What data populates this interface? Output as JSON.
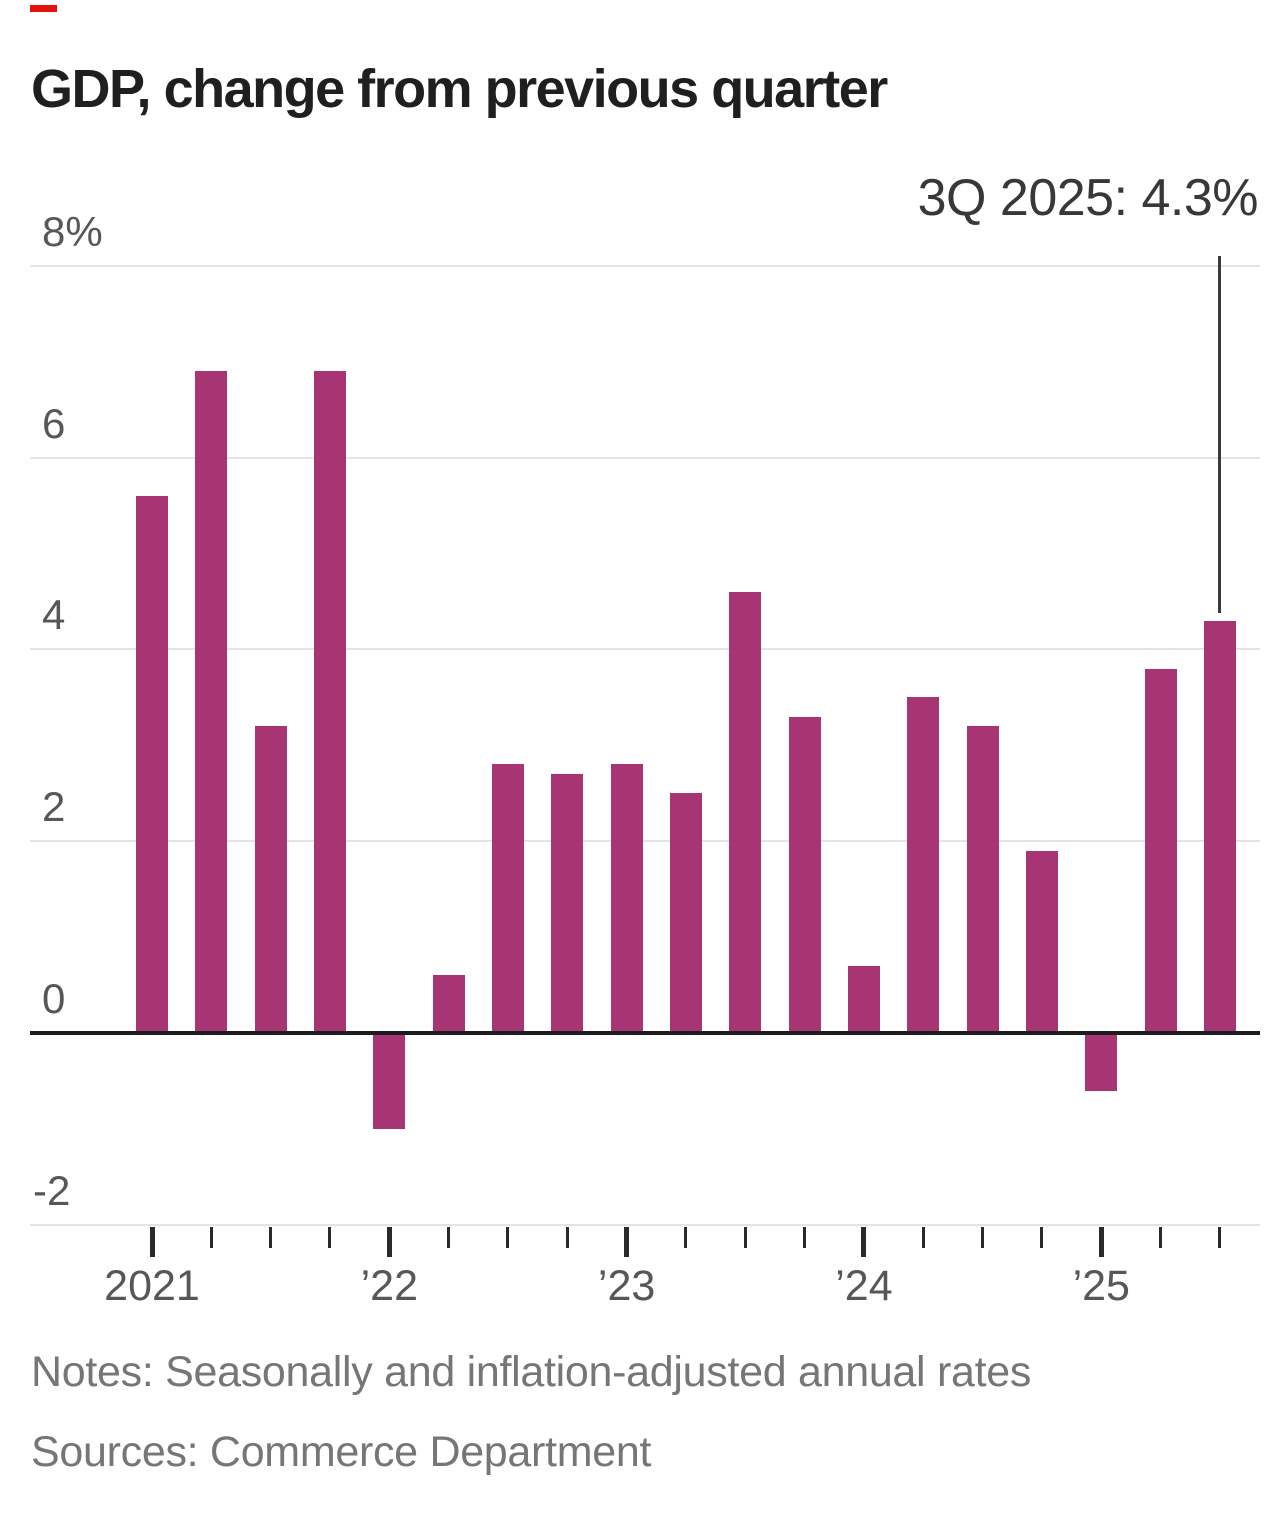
{
  "brand": {
    "accent_color": "#e3120b"
  },
  "header": {
    "title": "GDP, change from previous quarter"
  },
  "annotation": {
    "label": "3Q 2025: 4.3%"
  },
  "footer": {
    "notes": "Notes: Seasonally and inflation-adjusted annual rates",
    "sources": "Sources: Commerce Department"
  },
  "chart_data": {
    "type": "bar",
    "title": "GDP, change from previous quarter",
    "categories": [
      "1Q 2021",
      "2Q 2021",
      "3Q 2021",
      "4Q 2021",
      "1Q 2022",
      "2Q 2022",
      "3Q 2022",
      "4Q 2022",
      "1Q 2023",
      "2Q 2023",
      "3Q 2023",
      "4Q 2023",
      "1Q 2024",
      "2Q 2024",
      "3Q 2024",
      "4Q 2024",
      "1Q 2025",
      "2Q 2025",
      "3Q 2025"
    ],
    "values": [
      5.6,
      6.9,
      3.2,
      6.9,
      -1.0,
      0.6,
      2.8,
      2.7,
      2.8,
      2.5,
      4.6,
      3.3,
      0.7,
      3.5,
      3.2,
      1.9,
      -0.6,
      3.8,
      4.3
    ],
    "highlighted_point": {
      "category": "3Q 2025",
      "value": 4.3,
      "label": "3Q 2025: 4.3%"
    },
    "bar_color": "#a83573",
    "xlabel": "",
    "ylabel": "",
    "ylim": [
      -2,
      8
    ],
    "grid": true,
    "legend_position": "none",
    "y_ticks": [
      {
        "label": "8%",
        "value": 8
      },
      {
        "label": "6",
        "value": 6
      },
      {
        "label": "4",
        "value": 4
      },
      {
        "label": "2",
        "value": 2
      },
      {
        "label": "0",
        "value": 0
      },
      {
        "label": "-2",
        "value": -2
      }
    ],
    "x_ticks": [
      {
        "label": "2021",
        "quarter_index": 0
      },
      {
        "label": "’22",
        "quarter_index": 4
      },
      {
        "label": "’23",
        "quarter_index": 8
      },
      {
        "label": "’24",
        "quarter_index": 12
      },
      {
        "label": "’25",
        "quarter_index": 16
      }
    ]
  }
}
